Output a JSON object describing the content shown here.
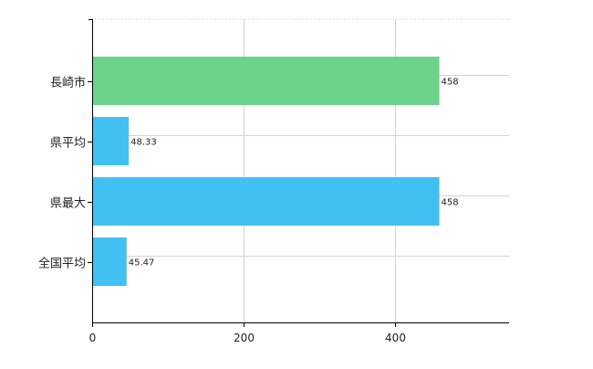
{
  "chart_data": {
    "type": "bar",
    "orientation": "horizontal",
    "categories": [
      "長崎市",
      "県平均",
      "県最大",
      "全国平均"
    ],
    "values": [
      458,
      48.33,
      458,
      45.47
    ],
    "value_labels": [
      "458",
      "48.33",
      "458",
      "45.47"
    ],
    "bar_colors": [
      "#6dd38a",
      "#41c1f2",
      "#41c1f2",
      "#41c1f2"
    ],
    "x_ticks": [
      0,
      200,
      400
    ],
    "x_tick_labels": [
      "0",
      "200",
      "400"
    ],
    "xlim": [
      0,
      550
    ],
    "title": "",
    "xlabel": "",
    "ylabel": "",
    "grid": true,
    "legend": "none"
  }
}
